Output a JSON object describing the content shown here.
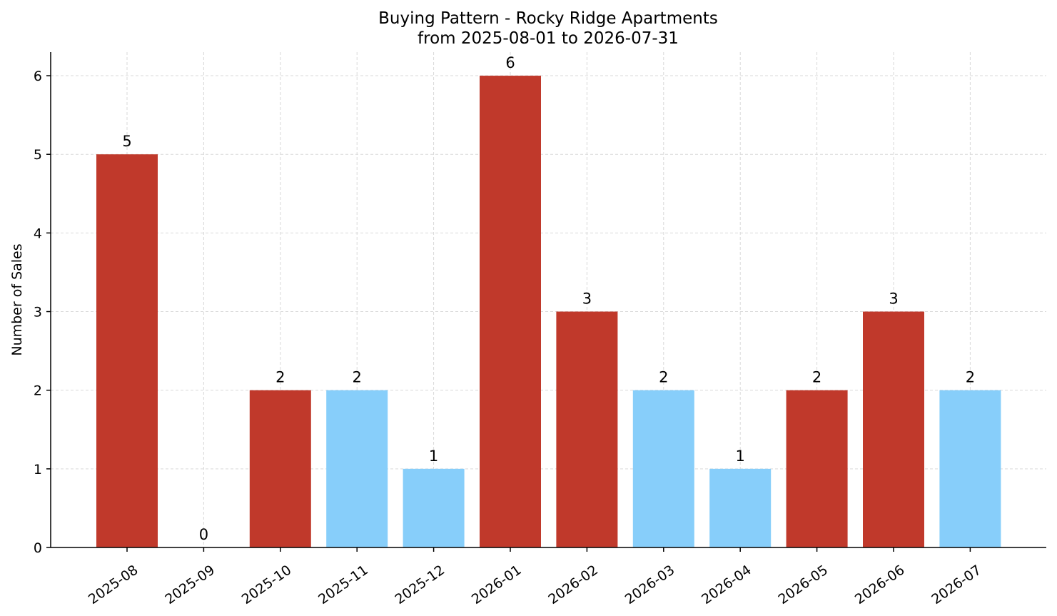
{
  "chart_data": {
    "type": "bar",
    "title": "Buying Pattern - Rocky Ridge Apartments",
    "subtitle": "from 2025-08-01 to 2026-07-31",
    "xlabel": "",
    "ylabel": "Number of Sales",
    "ylim": [
      0,
      6.3
    ],
    "yticks": [
      0,
      1,
      2,
      3,
      4,
      5,
      6
    ],
    "grid": true,
    "categories": [
      "2025-08",
      "2025-09",
      "2025-10",
      "2025-11",
      "2025-12",
      "2026-01",
      "2026-02",
      "2026-03",
      "2026-04",
      "2026-05",
      "2026-06",
      "2026-07"
    ],
    "values": [
      5,
      0,
      2,
      2,
      1,
      6,
      3,
      2,
      1,
      2,
      3,
      2
    ],
    "bar_colors": [
      "#c0392b",
      "#c0392b",
      "#c0392b",
      "#87cefa",
      "#87cefa",
      "#c0392b",
      "#c0392b",
      "#87cefa",
      "#87cefa",
      "#c0392b",
      "#c0392b",
      "#87cefa"
    ]
  }
}
